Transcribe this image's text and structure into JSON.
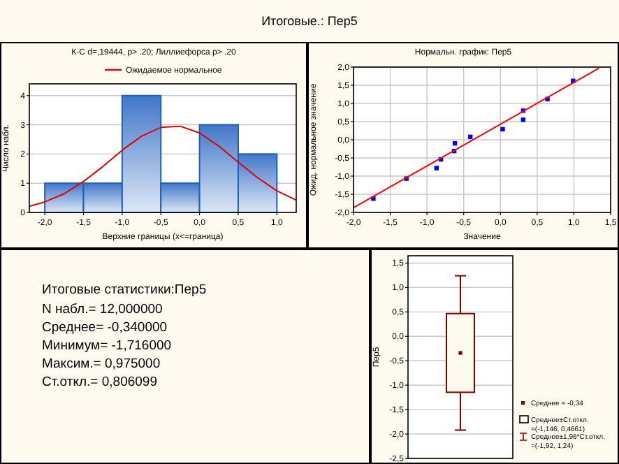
{
  "chart_data": [
    {
      "type": "other",
      "title": "Итоговые.: Пер5"
    },
    {
      "type": "histogram",
      "title": "К-С d=,19444, p> .20; Лиллиефорса p> .20",
      "xlabel": "Верхние границы (x<=граница)",
      "ylabel": "Число набл.",
      "bins": [
        -2,
        -1.5,
        -1,
        -0.5,
        0,
        0.5,
        1
      ],
      "values": [
        1,
        1,
        4,
        1,
        3,
        2
      ],
      "color": "#1f5fbf",
      "xlim": [
        -2.2,
        1.25
      ],
      "ylim": [
        0,
        4.4
      ],
      "xticks": [
        {
          "value": -2,
          "label": "-2,0"
        },
        {
          "value": -1.5,
          "label": "-1,5"
        },
        {
          "value": -1,
          "label": "-1,0"
        },
        {
          "value": -0.5,
          "label": "-0,5"
        },
        {
          "value": 0,
          "label": "0,0"
        },
        {
          "value": 0.5,
          "label": "0,5"
        },
        {
          "value": 1,
          "label": "1,0"
        }
      ],
      "yticks": [
        0,
        1,
        2,
        3,
        4
      ],
      "grid": "y",
      "legend": "top",
      "series": [
        {
          "name": "Ожидаемое нормальное",
          "type": "line",
          "color": "#e00000",
          "x": [
            -2.2,
            -2,
            -1.75,
            -1.5,
            -1.25,
            -1,
            -0.75,
            -0.5,
            -0.25,
            0,
            0.25,
            0.5,
            0.75,
            1,
            1.25
          ],
          "values": [
            0.21,
            0.36,
            0.64,
            1.06,
            1.57,
            2.13,
            2.61,
            2.91,
            2.95,
            2.72,
            2.27,
            1.72,
            1.19,
            0.74,
            0.42
          ]
        }
      ]
    },
    {
      "type": "scatter",
      "title": "Нормальн. график: Пер5",
      "xlabel": "Значение",
      "ylabel": "Ожид. нормальное значение",
      "xlim": [
        -2,
        1.5
      ],
      "ylim": [
        -2,
        2
      ],
      "xticks": [
        {
          "value": -2,
          "label": "-2,0"
        },
        {
          "value": -1.5,
          "label": "-1,5"
        },
        {
          "value": -1,
          "label": "-1,0"
        },
        {
          "value": -0.5,
          "label": "-0,5"
        },
        {
          "value": 0,
          "label": "0,0"
        },
        {
          "value": 0.5,
          "label": "0,5"
        },
        {
          "value": 1,
          "label": "1,0"
        },
        {
          "value": 1.5,
          "label": "1,5"
        }
      ],
      "yticks": [
        {
          "value": -2,
          "label": "-2,0"
        },
        {
          "value": -1.5,
          "label": "-1,5"
        },
        {
          "value": -1,
          "label": "-1,0"
        },
        {
          "value": -0.5,
          "label": "-0,5"
        },
        {
          "value": 0,
          "label": "0,0"
        },
        {
          "value": 0.5,
          "label": "0,5"
        },
        {
          "value": 1,
          "label": "1,0"
        },
        {
          "value": 1.5,
          "label": "1,5"
        },
        {
          "value": 2,
          "label": "2,0"
        }
      ],
      "grid": true,
      "series": [
        {
          "color": "#0000ff",
          "marker": "square",
          "x": [
            -1.73,
            -1.28,
            -0.87,
            -0.81,
            -0.63,
            -0.62,
            -0.41,
            0.03,
            0.31,
            0.31,
            0.64,
            0.99
          ],
          "values": [
            -1.62,
            -1.07,
            -0.78,
            -0.54,
            -0.31,
            -0.1,
            0.08,
            0.29,
            0.8,
            0.55,
            1.12,
            1.62
          ]
        },
        {
          "type": "line",
          "marker": "none",
          "color": "#ff0000",
          "x": [
            -2,
            1.34
          ],
          "values": [
            -1.87,
            1.97
          ]
        }
      ]
    },
    {
      "type": "other",
      "title": "Итоговые статистики:Пер5",
      "annotations": [
        "N набл.= 12,000000",
        "Среднее= -0,340000",
        "Минимум= -1,716000",
        "Максим.= 0,975000",
        "Ст.откл.= 0,806099"
      ]
    },
    {
      "type": "box",
      "ylabel": "Пер5",
      "categories": [
        null
      ],
      "color": "#800000",
      "boxes": [
        {
          "low": -1.92,
          "q1": -1.146,
          "q3": 0.466,
          "high": 1.24,
          "mean": -0.34
        }
      ],
      "ylim": [
        -2.5,
        1.65
      ],
      "yticks": [
        {
          "value": -2.5,
          "label": "-2,5"
        },
        {
          "value": -2,
          "label": "-2,0"
        },
        {
          "value": -1.5,
          "label": "-1,5"
        },
        {
          "value": -1,
          "label": "-1,0"
        },
        {
          "value": -0.5,
          "label": "-0,5"
        },
        {
          "value": 0,
          "label": "0,0"
        },
        {
          "value": 0.5,
          "label": "0,5"
        },
        {
          "value": 1,
          "label": "1,0"
        },
        {
          "value": 1.5,
          "label": "1,5"
        }
      ],
      "grid": "y",
      "tick_labels": "y",
      "annotations": [
        "Среднее = -0,34",
        "Среднее±Ст.откл.\n=(-1,146, 0,4661)",
        "Среднее±1,96*Ст.откл.\n=(-1,92, 1,24)"
      ]
    }
  ]
}
